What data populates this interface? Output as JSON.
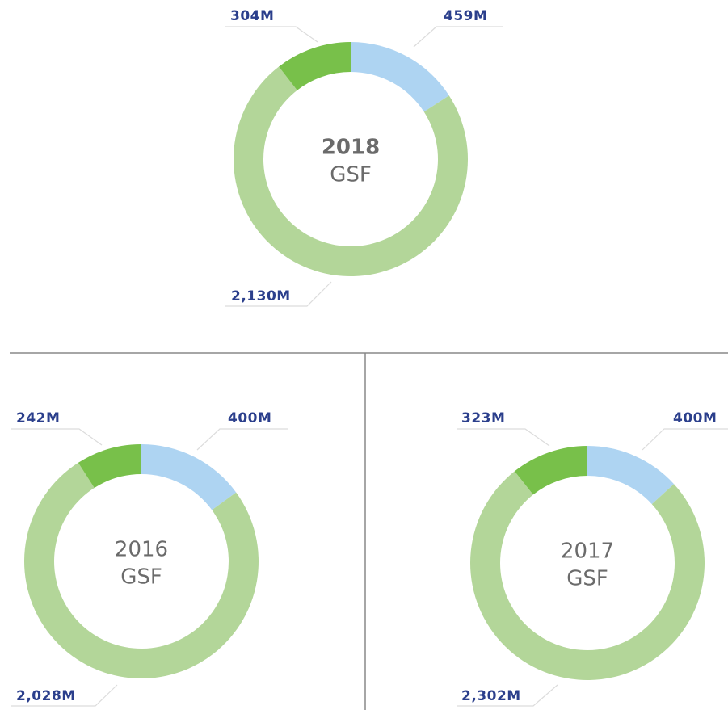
{
  "chart_data": [
    {
      "type": "donut",
      "center_title": "2018",
      "center_subtitle": "GSF",
      "values": [
        459,
        2130,
        304
      ],
      "value_labels": [
        "459M",
        "2,130M",
        "304M"
      ],
      "colors": [
        "#aed4f2",
        "#b3d699",
        "#78c04a"
      ]
    },
    {
      "type": "donut",
      "center_title": "2016",
      "center_subtitle": "GSF",
      "values": [
        400,
        2028,
        242
      ],
      "value_labels": [
        "400M",
        "2,028M",
        "242M"
      ],
      "colors": [
        "#aed4f2",
        "#b3d699",
        "#78c04a"
      ]
    },
    {
      "type": "donut",
      "center_title": "2017",
      "center_subtitle": "GSF",
      "values": [
        400,
        2302,
        323
      ],
      "value_labels": [
        "400M",
        "2,302M",
        "323M"
      ],
      "colors": [
        "#aed4f2",
        "#b3d699",
        "#78c04a"
      ]
    }
  ]
}
